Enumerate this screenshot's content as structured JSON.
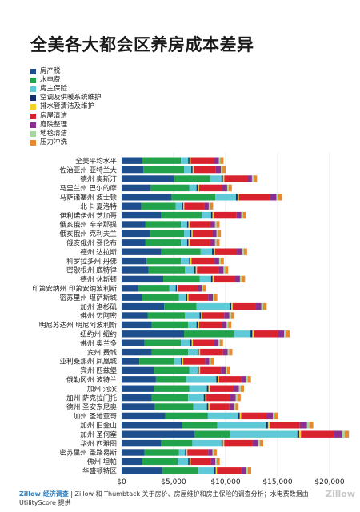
{
  "chart_data": {
    "type": "bar",
    "stacked": true,
    "orientation": "horizontal",
    "title": "全美各大都会区养房成本差异",
    "x_ticks": [
      "$0",
      "$5,000",
      "$10,000",
      "$15,000",
      "$20,000"
    ],
    "xlim": [
      0,
      22000
    ],
    "grid": true,
    "legend_position": "top-left",
    "categories": [
      "全美平均水平",
      "佐治亚州 亚特兰大",
      "德州 奥斯汀",
      "马里兰州 巴尔的摩",
      "马萨诸塞州 波士顿",
      "北卡 夏洛特",
      "伊利诺伊州 芝加哥",
      "俄亥俄州 辛辛那提",
      "俄亥俄州 克利夫兰",
      "俄亥俄州 哥伦布",
      "德州 达拉斯",
      "科罗拉多州 丹佛",
      "密歇根州 底特律",
      "德州 休斯顿",
      "印第安纳州 印第安纳波利斯",
      "密苏里州 堪萨斯城",
      "加州 洛杉矶",
      "佛州 迈阿密",
      "明尼苏达州 明尼阿波利斯",
      "纽约州 纽约",
      "佛州 奥兰多",
      "宾州 费城",
      "亚利桑那州 凤凰城",
      "宾州 匹兹堡",
      "俄勒冈州 波特兰",
      "加州 河滨",
      "加州 萨克拉门托",
      "德州 圣安东尼奥",
      "加州 圣地亚哥",
      "加州 旧金山",
      "加州 圣何塞",
      "华州 西雅图",
      "密苏里州 圣路易斯",
      "佛州 坦帕",
      "华盛顿特区"
    ],
    "series": [
      {
        "name": "房产税",
        "color": "#1f4e8c",
        "values": [
          2000,
          2100,
          5000,
          2800,
          4800,
          1900,
          3800,
          2300,
          2700,
          2300,
          3800,
          2400,
          2600,
          4000,
          1600,
          2000,
          4100,
          2500,
          2900,
          6000,
          2200,
          2900,
          1700,
          3100,
          3300,
          3100,
          2900,
          3200,
          4200,
          5800,
          7000,
          3800,
          2200,
          2000,
          3900
        ]
      },
      {
        "name": "水电费",
        "color": "#22a24a",
        "values": [
          3700,
          3900,
          3500,
          3700,
          4200,
          3300,
          3900,
          3400,
          3300,
          3400,
          3800,
          3300,
          3500,
          3500,
          3000,
          3500,
          3100,
          3600,
          3500,
          4800,
          3500,
          3500,
          3400,
          3400,
          2900,
          3400,
          3500,
          3700,
          4100,
          3400,
          3400,
          3000,
          3300,
          3400,
          3500
        ]
      },
      {
        "name": "房主保险",
        "color": "#60c9d8",
        "values": [
          700,
          700,
          1100,
          700,
          2000,
          600,
          900,
          600,
          600,
          600,
          1100,
          800,
          900,
          1100,
          600,
          700,
          3200,
          1400,
          800,
          1600,
          900,
          900,
          600,
          800,
          2900,
          1700,
          1500,
          1300,
          2900,
          4700,
          6500,
          2800,
          600,
          1000,
          1500
        ]
      },
      {
        "name": "空调及供暖系统维护",
        "color": "#14306a",
        "values": [
          130,
          130,
          150,
          130,
          150,
          120,
          140,
          120,
          120,
          120,
          150,
          120,
          130,
          150,
          110,
          120,
          150,
          140,
          130,
          170,
          130,
          130,
          120,
          130,
          140,
          150,
          140,
          140,
          160,
          170,
          180,
          140,
          120,
          130,
          140
        ]
      },
      {
        "name": "排水管清洁及维护",
        "color": "#f2d22a",
        "values": [
          120,
          120,
          130,
          120,
          130,
          110,
          120,
          110,
          110,
          110,
          130,
          110,
          120,
          130,
          100,
          110,
          130,
          120,
          120,
          150,
          120,
          120,
          110,
          120,
          130,
          130,
          120,
          120,
          140,
          160,
          170,
          130,
          110,
          120,
          130
        ]
      },
      {
        "name": "房屋清洁",
        "color": "#d8232e",
        "values": [
          2200,
          2100,
          2200,
          2200,
          3000,
          1900,
          2200,
          2000,
          1900,
          2000,
          2100,
          2200,
          2100,
          2000,
          1900,
          1900,
          2200,
          2100,
          2200,
          2300,
          2000,
          2200,
          2100,
          2000,
          2100,
          2300,
          2300,
          1900,
          2500,
          2900,
          3200,
          2700,
          2000,
          1900,
          2300
        ]
      },
      {
        "name": "庭院整理",
        "color": "#8a2f8e",
        "values": [
          500,
          500,
          450,
          500,
          600,
          450,
          450,
          450,
          400,
          450,
          500,
          450,
          450,
          500,
          400,
          450,
          550,
          500,
          450,
          600,
          450,
          450,
          400,
          450,
          500,
          500,
          500,
          450,
          550,
          700,
          750,
          550,
          400,
          450,
          500
        ]
      },
      {
        "name": "地毯清洁",
        "color": "#a8d5a2",
        "values": [
          150,
          150,
          170,
          150,
          190,
          140,
          160,
          150,
          140,
          150,
          170,
          150,
          150,
          170,
          130,
          140,
          180,
          160,
          150,
          200,
          150,
          150,
          140,
          150,
          160,
          170,
          170,
          150,
          180,
          220,
          240,
          170,
          140,
          150,
          170
        ]
      },
      {
        "name": "压力冲洗",
        "color": "#e58a2e",
        "values": [
          300,
          300,
          320,
          300,
          350,
          280,
          300,
          290,
          280,
          290,
          320,
          300,
          300,
          320,
          260,
          280,
          330,
          310,
          300,
          360,
          300,
          300,
          280,
          290,
          310,
          320,
          320,
          290,
          340,
          380,
          420,
          330,
          280,
          290,
          320
        ]
      }
    ]
  },
  "footer": {
    "brand": "Zillow 经济调查",
    "text": " | Zillow 和 Thumbtack 关于房价、房屋维护和房主保险的调查分析；水电费数据由 UtilityScore 提供"
  },
  "watermark": "Zillow"
}
